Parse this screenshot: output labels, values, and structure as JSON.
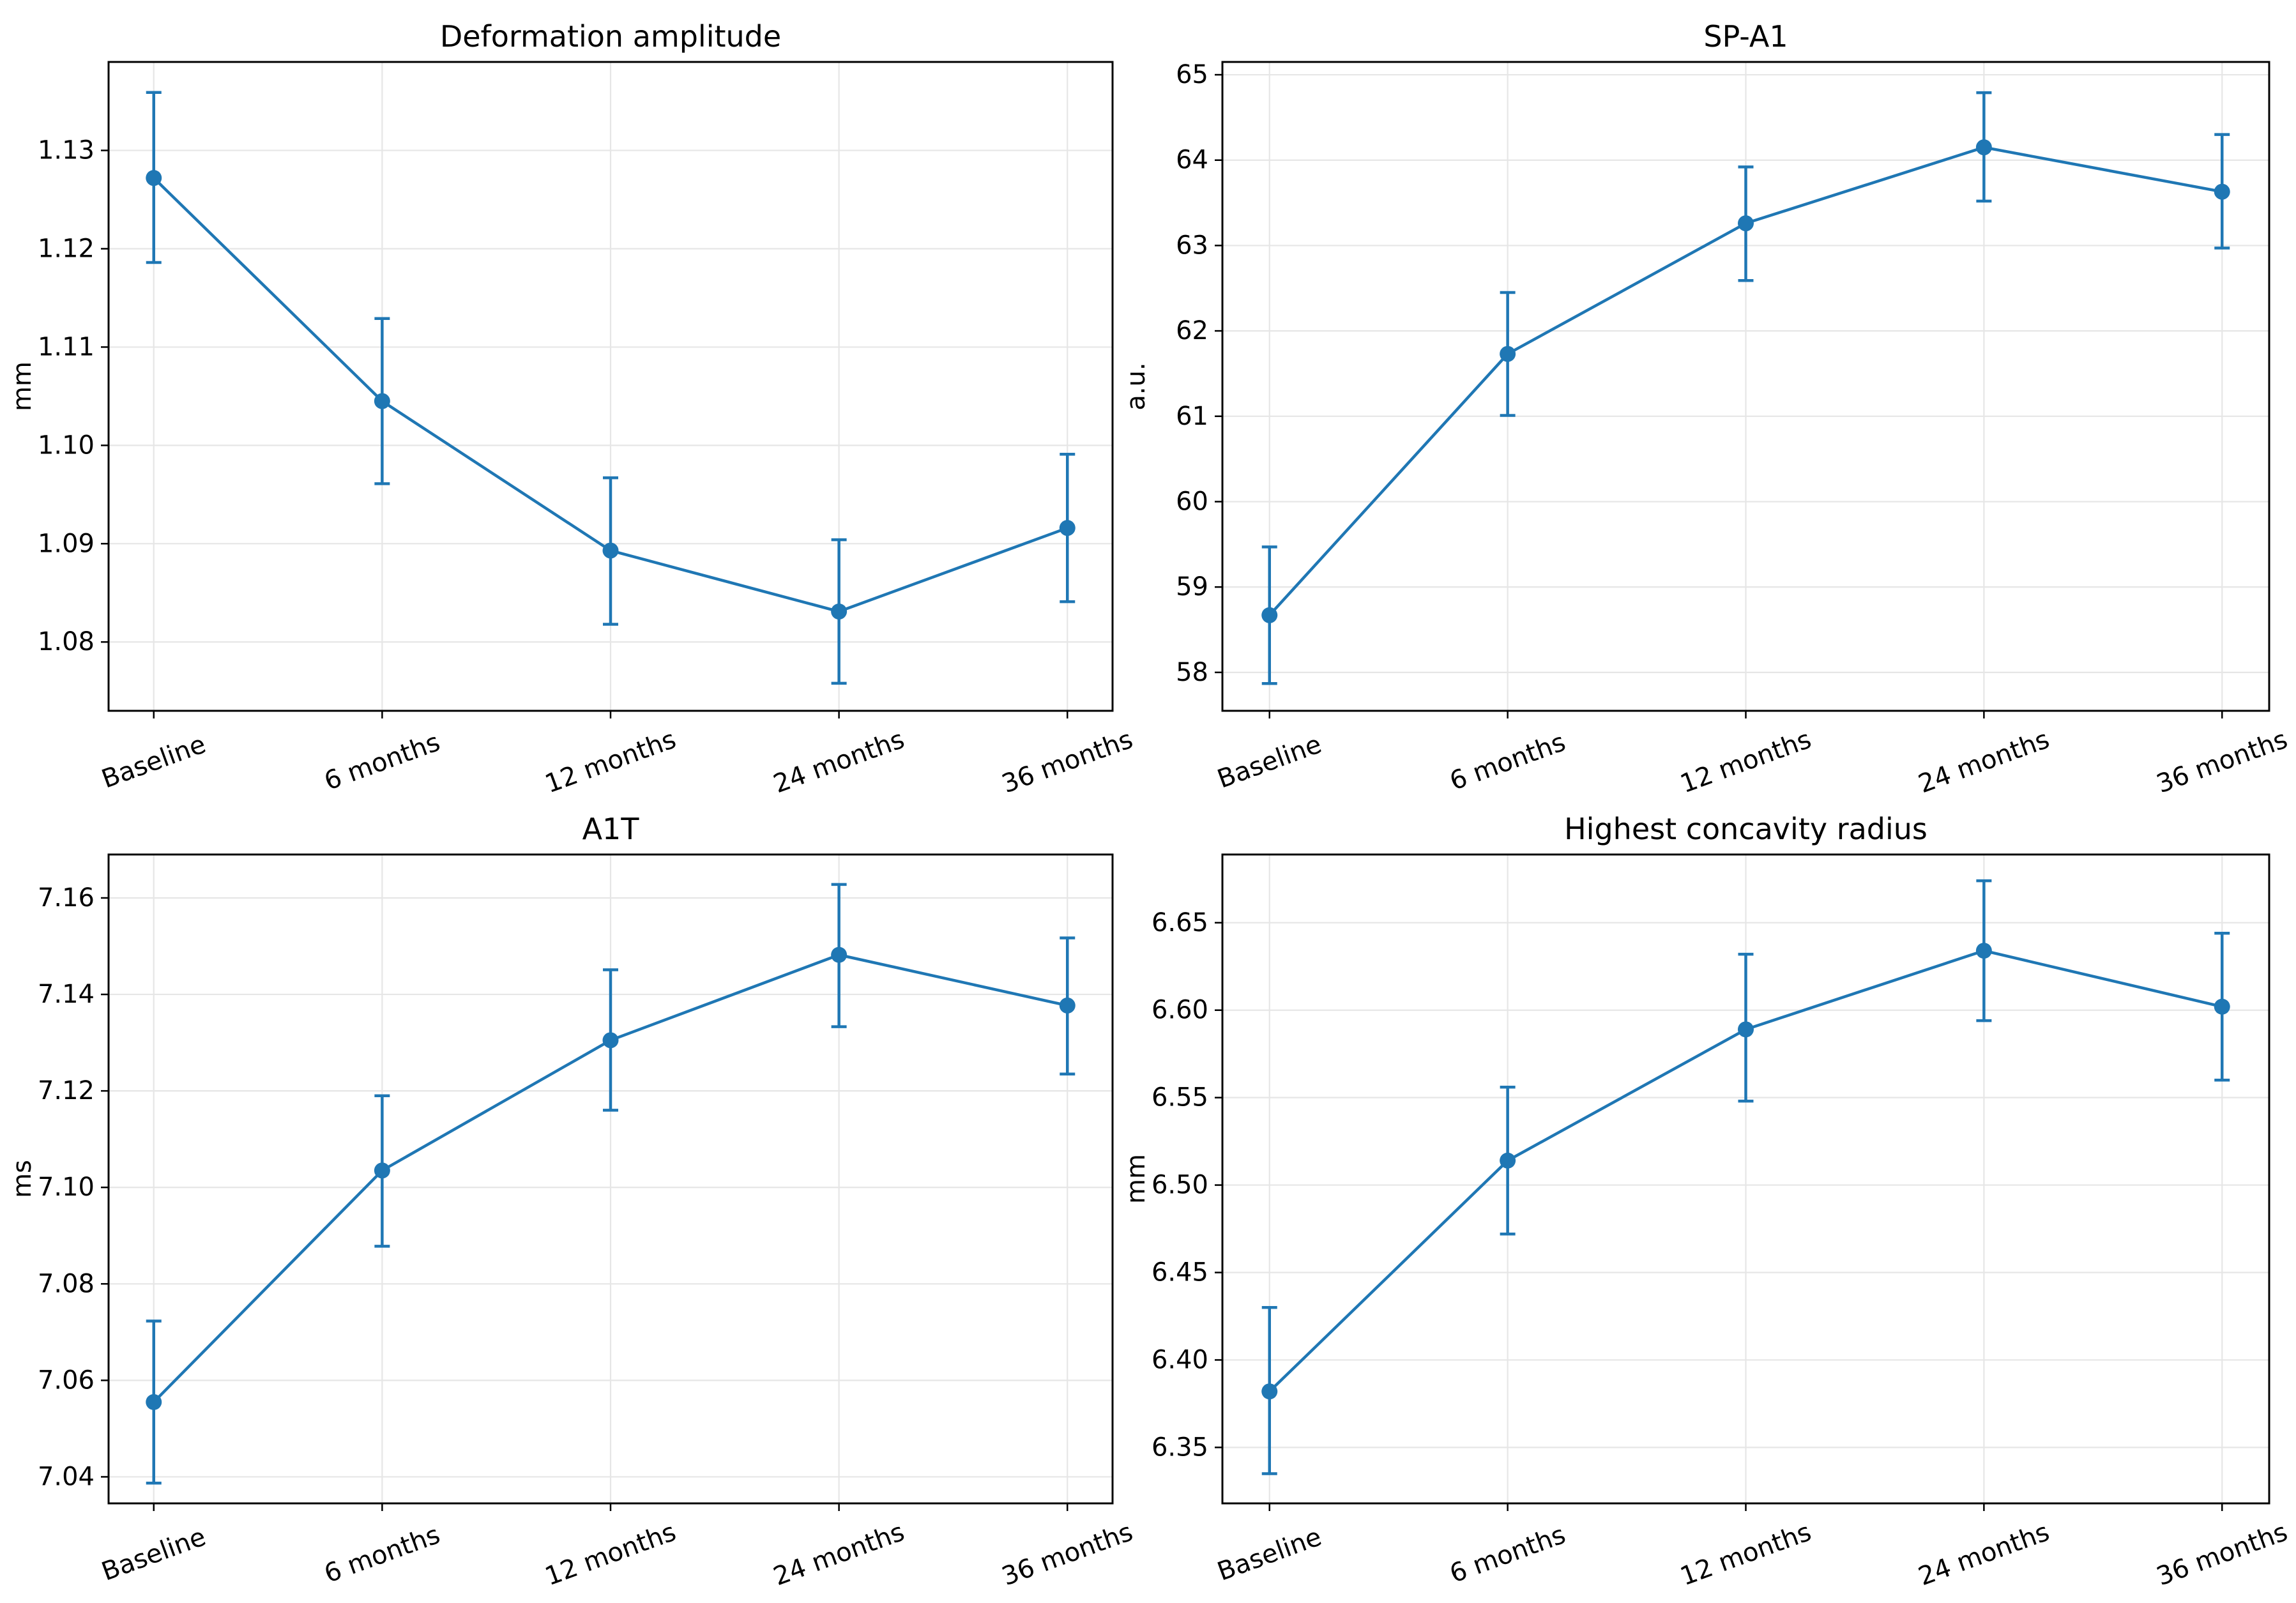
{
  "chart_data": [
    {
      "type": "line",
      "title": "Deformation amplitude",
      "xlabel": "",
      "ylabel": "mm",
      "categories": [
        "Baseline",
        "6 months",
        "12 months",
        "24 months",
        "36 months"
      ],
      "series": [
        {
          "values": [
            1.1272,
            1.1045,
            1.0893,
            1.0831,
            1.0916
          ],
          "error_low": [
            1.1186,
            1.0961,
            1.0818,
            1.0758,
            1.0841
          ],
          "error_high": [
            1.1359,
            1.1129,
            1.0967,
            1.0904,
            1.0991
          ]
        }
      ],
      "ylim": [
        1.073,
        1.139
      ],
      "yticks": [
        1.08,
        1.09,
        1.1,
        1.11,
        1.12,
        1.13
      ],
      "ytick_labels": [
        "1.08",
        "1.09",
        "1.10",
        "1.11",
        "1.12",
        "1.13"
      ],
      "grid": true,
      "markers": "circle with error bars",
      "color": "#1f77b4"
    },
    {
      "type": "line",
      "title": "SP-A1",
      "xlabel": "",
      "ylabel": "a.u.",
      "categories": [
        "Baseline",
        "6 months",
        "12 months",
        "24 months",
        "36 months"
      ],
      "series": [
        {
          "values": [
            58.67,
            61.73,
            63.26,
            64.15,
            63.63
          ],
          "error_low": [
            57.87,
            61.01,
            62.59,
            63.52,
            62.97
          ],
          "error_high": [
            59.47,
            62.45,
            63.92,
            64.79,
            64.3
          ]
        }
      ],
      "ylim": [
        57.55,
        65.15
      ],
      "yticks": [
        58,
        59,
        60,
        61,
        62,
        63,
        64,
        65
      ],
      "ytick_labels": [
        "58",
        "59",
        "60",
        "61",
        "62",
        "63",
        "64",
        "65"
      ],
      "grid": true,
      "markers": "circle with error bars",
      "color": "#1f77b4"
    },
    {
      "type": "line",
      "title": "A1T",
      "xlabel": "",
      "ylabel": "ms",
      "categories": [
        "Baseline",
        "6 months",
        "12 months",
        "24 months",
        "36 months"
      ],
      "series": [
        {
          "values": [
            7.0555,
            7.1035,
            7.1305,
            7.1482,
            7.1377
          ],
          "error_low": [
            7.0387,
            7.0878,
            7.116,
            7.1333,
            7.1235
          ],
          "error_high": [
            7.0723,
            7.119,
            7.1451,
            7.1628,
            7.1517
          ]
        }
      ],
      "ylim": [
        7.0345,
        7.169
      ],
      "yticks": [
        7.04,
        7.06,
        7.08,
        7.1,
        7.12,
        7.14,
        7.16
      ],
      "ytick_labels": [
        "7.04",
        "7.06",
        "7.08",
        "7.10",
        "7.12",
        "7.14",
        "7.16"
      ],
      "grid": true,
      "markers": "circle with error bars",
      "color": "#1f77b4"
    },
    {
      "type": "line",
      "title": "Highest concavity radius",
      "xlabel": "",
      "ylabel": "mm",
      "categories": [
        "Baseline",
        "6 months",
        "12 months",
        "24 months",
        "36 months"
      ],
      "series": [
        {
          "values": [
            6.382,
            6.514,
            6.589,
            6.634,
            6.602
          ],
          "error_low": [
            6.335,
            6.472,
            6.548,
            6.594,
            6.56
          ],
          "error_high": [
            6.43,
            6.556,
            6.632,
            6.674,
            6.644
          ]
        }
      ],
      "ylim": [
        6.318,
        6.689
      ],
      "yticks": [
        6.35,
        6.4,
        6.45,
        6.5,
        6.55,
        6.6,
        6.65
      ],
      "ytick_labels": [
        "6.35",
        "6.40",
        "6.45",
        "6.50",
        "6.55",
        "6.60",
        "6.65"
      ],
      "grid": true,
      "markers": "circle with error bars",
      "color": "#1f77b4"
    }
  ]
}
